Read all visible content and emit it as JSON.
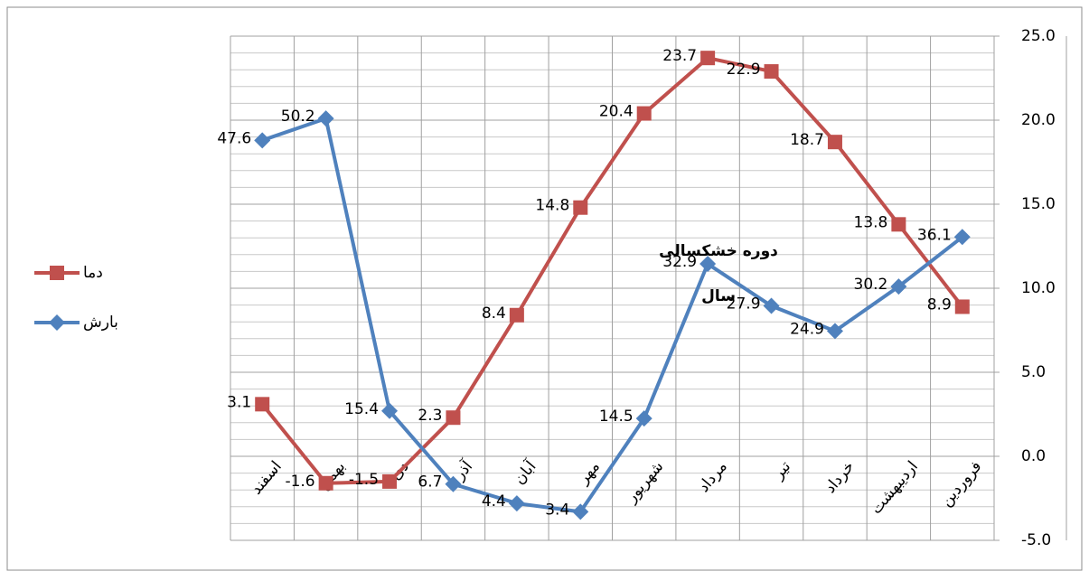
{
  "chart_data": {
    "type": "line",
    "categories": [
      "اسفند",
      "بهمن",
      "دی",
      "آذر",
      "آبان",
      "مهر",
      "شهریور",
      "مرداد",
      "تیر",
      "خرداد",
      "اردیبهشت",
      "فروردین"
    ],
    "series": [
      {
        "name": "دما",
        "color": "#c0504d",
        "marker": "square",
        "values": [
          3.1,
          -1.6,
          -1.5,
          2.3,
          8.4,
          14.8,
          20.4,
          23.7,
          22.9,
          18.7,
          13.8,
          8.9
        ]
      },
      {
        "name": "بارش",
        "color": "#4f81bd",
        "marker": "diamond",
        "axis": "y2",
        "values": [
          47.6,
          50.2,
          15.4,
          6.7,
          4.4,
          3.4,
          14.5,
          32.9,
          27.9,
          24.9,
          30.2,
          36.1
        ]
      }
    ],
    "ylim": [
      -5,
      25
    ],
    "yticks": [
      {
        "value": -5,
        "label": "-5.0"
      },
      {
        "value": 0,
        "label": "0.0"
      },
      {
        "value": 5,
        "label": "5.0"
      },
      {
        "value": 10,
        "label": "10.0"
      },
      {
        "value": 15,
        "label": "15.0"
      },
      {
        "value": 20,
        "label": "20.0"
      },
      {
        "value": 25,
        "label": "25.0"
      }
    ],
    "y2lim": [
      0,
      60
    ],
    "grid": true,
    "legend": "left",
    "annotations": [
      "دوره خشکسالی",
      "سال"
    ]
  }
}
